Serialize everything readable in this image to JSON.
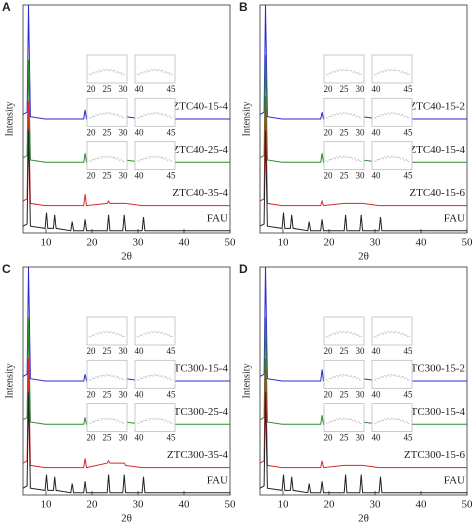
{
  "chart_data": [
    {
      "type": "line",
      "label": "A",
      "xlabel": "2θ",
      "ylabel": "Intensity",
      "xlim": [
        5,
        50
      ],
      "xticks": [
        10,
        20,
        30,
        40,
        50
      ],
      "ylim": [
        0,
        100
      ],
      "inset_xticks": [
        [
          20,
          25,
          30
        ],
        [
          40,
          45
        ]
      ],
      "x": [
        5,
        5.9,
        6.2,
        6.6,
        9.8,
        10.1,
        10.4,
        11.6,
        11.9,
        12.2,
        15.4,
        15.7,
        16,
        18.2,
        18.5,
        18.8,
        23.3,
        23.6,
        23.9,
        26.7,
        27,
        27.3,
        30.9,
        31.2,
        31.5,
        50
      ],
      "series": [
        {
          "name": "ZTC40-15-4",
          "color": "#2a2ad0",
          "values": [
            52,
            53,
            100,
            51,
            50,
            50,
            50,
            50,
            50,
            50,
            50,
            50,
            50,
            50,
            54,
            50,
            51,
            51,
            51,
            51,
            51,
            51,
            50,
            50,
            50,
            50
          ]
        },
        {
          "name": "ZTC40-25-4",
          "color": "#2e8b2e",
          "values": [
            33,
            34,
            76,
            32,
            31,
            31,
            31,
            31,
            31,
            31,
            31,
            31,
            31,
            31,
            35,
            31,
            32,
            32,
            32,
            32,
            32,
            32,
            31,
            31,
            31,
            31
          ]
        },
        {
          "name": "ZTC40-35-4",
          "color": "#d42a2a",
          "values": [
            14,
            15,
            58,
            13,
            12,
            12,
            12,
            12,
            12,
            12,
            12,
            12,
            12,
            12,
            17,
            12,
            13,
            14,
            13,
            13,
            13,
            13,
            12,
            12,
            12,
            12
          ]
        },
        {
          "name": "FAU",
          "color": "#222222",
          "values": [
            3,
            4,
            45,
            3,
            2,
            9,
            2,
            2,
            8,
            2,
            1,
            5,
            1,
            1,
            6,
            1,
            1,
            8,
            1,
            1,
            8,
            1,
            1,
            7,
            1,
            1
          ]
        }
      ]
    },
    {
      "type": "line",
      "label": "B",
      "xlabel": "2θ",
      "ylabel": "Intensity",
      "xlim": [
        5,
        50
      ],
      "xticks": [
        10,
        20,
        30,
        40,
        50
      ],
      "ylim": [
        0,
        100
      ],
      "inset_xticks": [
        [
          20,
          25,
          30
        ],
        [
          40,
          45
        ]
      ],
      "x": [
        5,
        5.9,
        6.2,
        6.6,
        9.8,
        10.1,
        10.4,
        11.6,
        11.9,
        12.2,
        15.4,
        15.7,
        16,
        18.2,
        18.5,
        18.8,
        23.3,
        23.6,
        23.9,
        26.7,
        27,
        27.3,
        30.9,
        31.2,
        31.5,
        50
      ],
      "series": [
        {
          "name": "ZTC40-15-2",
          "color": "#2a2ad0",
          "values": [
            52,
            53,
            100,
            51,
            50,
            50,
            50,
            50,
            50,
            50,
            50,
            50,
            50,
            50,
            53,
            50,
            51,
            51,
            51,
            51,
            51,
            51,
            50,
            50,
            50,
            50
          ]
        },
        {
          "name": "ZTC40-15-4",
          "color": "#2e8b2e",
          "values": [
            33,
            34,
            78,
            32,
            31,
            31,
            31,
            31,
            31,
            31,
            31,
            31,
            31,
            31,
            35,
            31,
            32,
            32,
            32,
            32,
            32,
            32,
            31,
            31,
            31,
            31
          ]
        },
        {
          "name": "ZTC40-15-6",
          "color": "#d42a2a",
          "values": [
            14,
            15,
            60,
            13,
            12,
            12,
            12,
            12,
            12,
            12,
            12,
            12,
            12,
            12,
            14,
            12,
            13,
            13,
            13,
            13,
            13,
            13,
            12,
            12,
            12,
            12
          ]
        },
        {
          "name": "FAU",
          "color": "#222222",
          "values": [
            3,
            4,
            45,
            3,
            2,
            9,
            2,
            2,
            8,
            2,
            1,
            5,
            1,
            1,
            6,
            1,
            1,
            8,
            1,
            1,
            8,
            1,
            1,
            7,
            1,
            1
          ]
        }
      ]
    },
    {
      "type": "line",
      "label": "C",
      "xlabel": "2θ",
      "ylabel": "Intensity",
      "xlim": [
        5,
        50
      ],
      "xticks": [
        10,
        20,
        30,
        40,
        50
      ],
      "ylim": [
        0,
        100
      ],
      "inset_xticks": [
        [
          20,
          25,
          30
        ],
        [
          40,
          45
        ]
      ],
      "x": [
        5,
        5.9,
        6.2,
        6.6,
        9.8,
        10.1,
        10.4,
        11.6,
        11.9,
        12.2,
        15.4,
        15.7,
        16,
        18.2,
        18.5,
        18.8,
        23.3,
        23.6,
        23.9,
        26.7,
        27,
        27.3,
        30.9,
        31.2,
        31.5,
        50
      ],
      "series": [
        {
          "name": "ZTC300-15-4",
          "color": "#2a2ad0",
          "values": [
            52,
            53,
            100,
            51,
            50,
            50,
            50,
            50,
            50,
            50,
            50,
            50,
            50,
            50,
            53,
            50,
            51,
            51,
            51,
            51,
            51,
            51,
            50,
            50,
            50,
            50
          ]
        },
        {
          "name": "ZTC300-25-4",
          "color": "#2e8b2e",
          "values": [
            33,
            34,
            78,
            32,
            31,
            31,
            31,
            31,
            31,
            31,
            31,
            31,
            31,
            31,
            34,
            31,
            32,
            32,
            32,
            32,
            32,
            32,
            31,
            31,
            31,
            31
          ]
        },
        {
          "name": "ZTC300-35-4",
          "color": "#d42a2a",
          "values": [
            14,
            15,
            60,
            13,
            12,
            12,
            12,
            12,
            12,
            12,
            12,
            12,
            12,
            12,
            16,
            12,
            14,
            15,
            14,
            14,
            14,
            13,
            12,
            12,
            12,
            12
          ]
        },
        {
          "name": "FAU",
          "color": "#222222",
          "values": [
            3,
            4,
            45,
            3,
            2,
            9,
            2,
            2,
            8,
            2,
            1,
            5,
            1,
            1,
            6,
            1,
            1,
            9,
            1,
            1,
            9,
            1,
            1,
            8,
            1,
            1
          ]
        }
      ]
    },
    {
      "type": "line",
      "label": "D",
      "xlabel": "2θ",
      "ylabel": "Intensity",
      "xlim": [
        5,
        50
      ],
      "xticks": [
        10,
        20,
        30,
        40,
        50
      ],
      "ylim": [
        0,
        100
      ],
      "inset_xticks": [
        [
          20,
          25,
          30
        ],
        [
          40,
          45
        ]
      ],
      "x": [
        5,
        5.9,
        6.2,
        6.6,
        9.8,
        10.1,
        10.4,
        11.6,
        11.9,
        12.2,
        15.4,
        15.7,
        16,
        18.2,
        18.5,
        18.8,
        23.3,
        23.6,
        23.9,
        26.7,
        27,
        27.3,
        30.9,
        31.2,
        31.5,
        50
      ],
      "series": [
        {
          "name": "ZTC300-15-2",
          "color": "#2a2ad0",
          "values": [
            52,
            53,
            100,
            51,
            50,
            50,
            50,
            50,
            50,
            50,
            50,
            50,
            50,
            50,
            55,
            50,
            51,
            51,
            51,
            51,
            51,
            51,
            50,
            50,
            50,
            50
          ]
        },
        {
          "name": "ZTC300-15-4",
          "color": "#2e8b2e",
          "values": [
            33,
            34,
            78,
            32,
            31,
            31,
            31,
            31,
            31,
            31,
            31,
            31,
            31,
            31,
            35,
            31,
            32,
            32,
            32,
            32,
            32,
            32,
            31,
            31,
            31,
            31
          ]
        },
        {
          "name": "ZTC300-15-6",
          "color": "#d42a2a",
          "values": [
            14,
            15,
            60,
            13,
            12,
            12,
            12,
            12,
            12,
            12,
            12,
            12,
            12,
            12,
            15,
            12,
            13,
            13,
            13,
            13,
            13,
            13,
            12,
            12,
            12,
            12
          ]
        },
        {
          "name": "FAU",
          "color": "#222222",
          "values": [
            3,
            4,
            45,
            3,
            2,
            9,
            2,
            2,
            8,
            2,
            1,
            5,
            1,
            1,
            6,
            1,
            1,
            9,
            1,
            1,
            9,
            1,
            1,
            8,
            1,
            1
          ]
        }
      ]
    }
  ]
}
